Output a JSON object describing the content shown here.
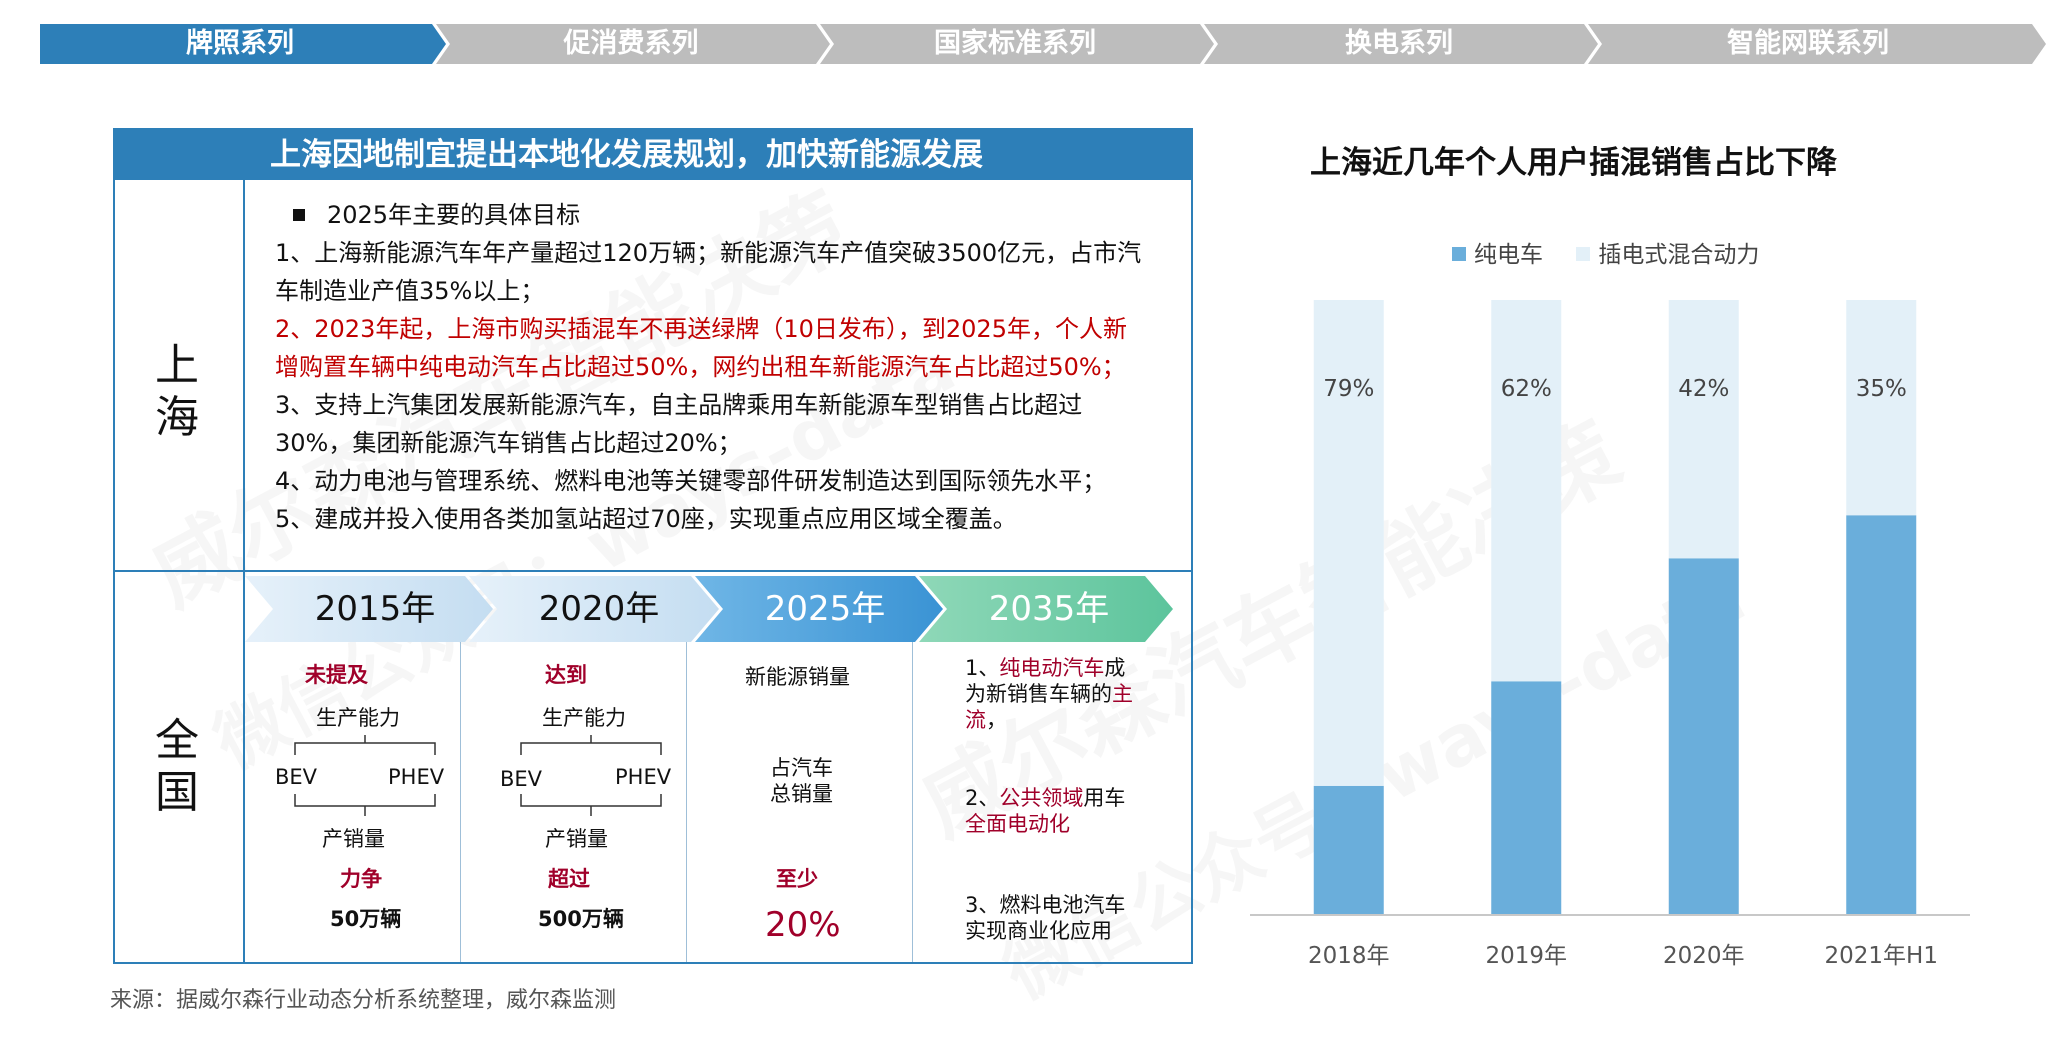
{
  "nav": {
    "tabs": [
      {
        "label": "牌照系列",
        "active": true
      },
      {
        "label": "促消费系列",
        "active": false
      },
      {
        "label": "国家标准系列",
        "active": false
      },
      {
        "label": "换电系列",
        "active": false
      },
      {
        "label": "智能网联系列",
        "active": false
      }
    ],
    "active_color": "#2d7fb8",
    "inactive_color": "#bdbdbd"
  },
  "panel": {
    "header": "上海因地制宜提出本地化发展规划，加快新能源发展",
    "shanghai_label": "上海",
    "national_label": "全国",
    "targets": {
      "heading": "2025年主要的具体目标",
      "item1_line1": "1、上海新能源汽车年产量超过120万辆；新能源汽车产值突破3500亿元，占市汽",
      "item1_line2": "车制造业产值35%以上；",
      "item2_line1": "2、2023年起，上海市购买插混车不再送绿牌（10日发布），到2025年，个人新",
      "item2_line2": "增购置车辆中纯电动汽车占比超过50%，网约出租车新能源汽车占比超过50%；",
      "item3_line1": "3、支持上汽集团发展新能源汽车，自主品牌乘用车新能源车型销售占比超过",
      "item3_line2": "30%，集团新能源汽车销售占比超过20%；",
      "item4": "4、动力电池与管理系统、燃料电池等关键零部件研发制造达到国际领先水平；",
      "item5": "5、建成并投入使用各类加氢站超过70座，实现重点应用区域全覆盖。"
    },
    "timeline": {
      "years": [
        "2015年",
        "2020年",
        "2025年",
        "2035年"
      ],
      "y2015": {
        "status": "未提及",
        "capacity": "生产能力",
        "bev": "BEV",
        "phev": "PHEV",
        "output": "产销量",
        "goal": "力争",
        "value": "50万辆"
      },
      "y2020": {
        "status": "达到",
        "capacity": "生产能力",
        "bev": "BEV",
        "phev": "PHEV",
        "output": "产销量",
        "goal": "超过",
        "value": "500万辆"
      },
      "y2025": {
        "metric": "新能源销量",
        "share1": "占汽车",
        "share2": "总销量",
        "goal": "至少",
        "value": "20%"
      },
      "y2035": {
        "g1_a": "1、",
        "g1_b": "纯电动汽车",
        "g1_c": "成",
        "g1_d": "为新销售车辆的",
        "g1_e": "主",
        "g1_f": "流",
        "g1_g": "，",
        "g2_a": "2、",
        "g2_b": "公共领域",
        "g2_c": "用车",
        "g2_d": "全面电动化",
        "g3_a": "3、燃料电池汽车",
        "g3_b": "实现商业化应用"
      }
    },
    "source": "来源：据威尔森行业动态分析系统整理，威尔森监测"
  },
  "watermark": {
    "line1": "威尔森汽车智能决策",
    "line2": "微信公众号：ways-data"
  },
  "chart_data": {
    "type": "bar",
    "stacked": true,
    "title": "上海近几年个人用户插混销售占比下降",
    "categories": [
      "2018年",
      "2019年",
      "2020年",
      "2021年H1"
    ],
    "series": [
      {
        "name": "纯电车",
        "values": [
          21,
          38,
          58,
          65
        ],
        "color": "#6aaedb"
      },
      {
        "name": "插电式混合动力",
        "values": [
          79,
          62,
          42,
          35
        ],
        "labels": [
          "79%",
          "62%",
          "42%",
          "35%"
        ],
        "color": "#e3f0f8"
      }
    ],
    "ylim": [
      0,
      100
    ],
    "legend": "top"
  }
}
